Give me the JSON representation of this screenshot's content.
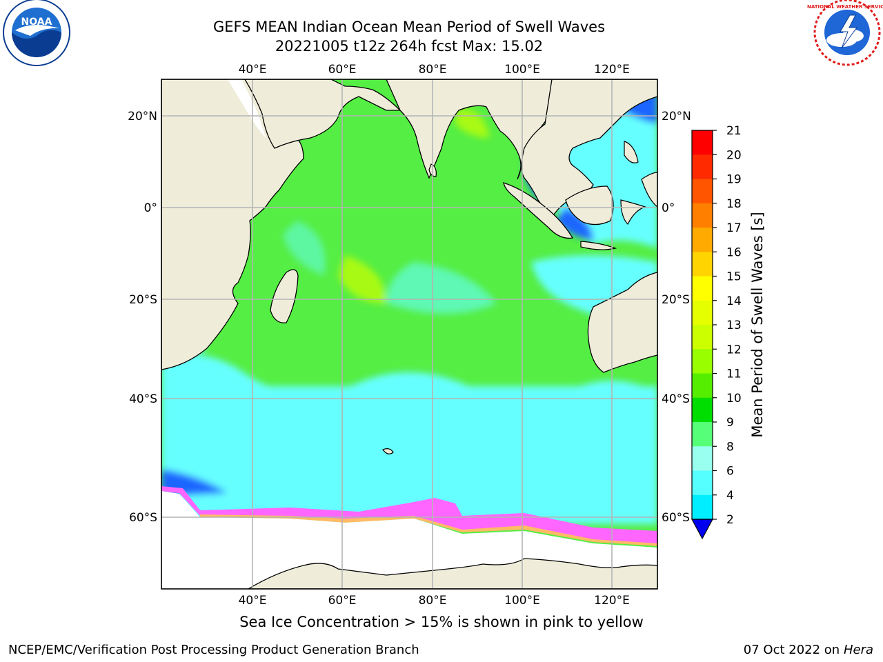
{
  "title": {
    "line1": "GEFS MEAN Indian Ocean Mean Period of Swell Waves",
    "line2": "20221005 t12z 264h fcst   Max: 15.02"
  },
  "logos": {
    "left": {
      "name": "noara-logo",
      "text": "NOAA"
    },
    "right": {
      "name": "nws-logo",
      "text": "NATIONAL WEATHER SERVICE"
    }
  },
  "map": {
    "lon_ticks_top": [
      "40°E",
      "60°E",
      "80°E",
      "100°E",
      "120°E"
    ],
    "lon_ticks_bottom": [
      "40°E",
      "60°E",
      "80°E",
      "100°E",
      "120°E"
    ],
    "lat_ticks_left": [
      "20°N",
      "0°",
      "20°S",
      "40°S",
      "60°S"
    ],
    "lat_ticks_right": [
      "20°N",
      "0°",
      "20°S",
      "40°S",
      "60°S"
    ]
  },
  "colorbar": {
    "label": "Mean Period of Swell Waves [s]",
    "ticks": [
      "21",
      "20",
      "19",
      "18",
      "17",
      "16",
      "15",
      "14",
      "13",
      "12",
      "11",
      "10",
      "9",
      "8",
      "6",
      "4",
      "2"
    ],
    "colors_top_to_bottom": [
      "#ff0000",
      "#ff2a00",
      "#ff5500",
      "#ff7f00",
      "#ffaa00",
      "#ffd400",
      "#ffff00",
      "#e6ff00",
      "#ccff00",
      "#99ff00",
      "#55ee00",
      "#00dd00",
      "#55ff77",
      "#99ffee",
      "#55ffff",
      "#00eeff",
      "#0099ff"
    ],
    "extend_color": "#0000ee"
  },
  "colors": {
    "land": "#efedda",
    "ice": "#ff66ff",
    "ocean_green": "#55ee44",
    "ocean_cyan": "#66ffff"
  },
  "caption": "Sea Ice Concentration > 15% is shown in pink to yellow",
  "footer": {
    "left": "NCEP/EMC/Verification Post Processing Product Generation Branch",
    "date": "07 Oct 2022 on ",
    "machine": "Hera"
  }
}
